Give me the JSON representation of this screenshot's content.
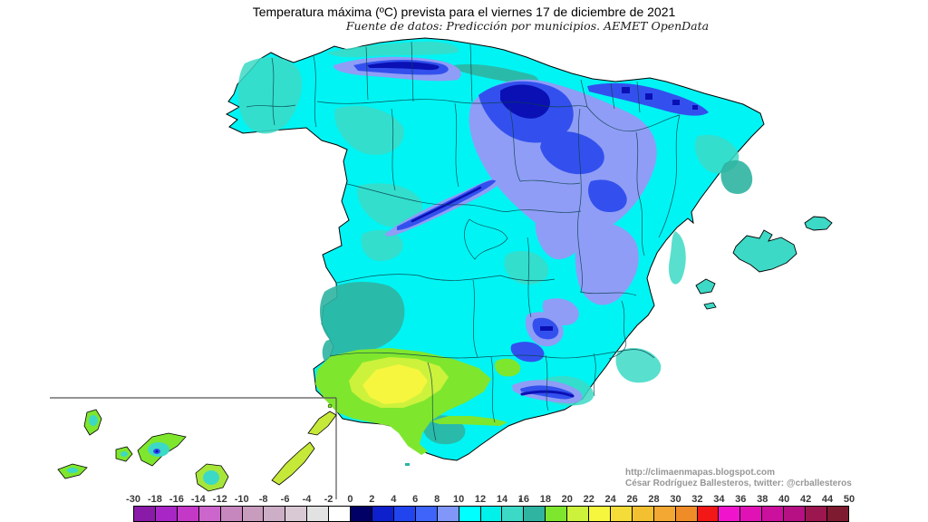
{
  "header": {
    "title": "Temperatura máxima (ºC) prevista para el viernes 17 de diciembre de 2021",
    "subtitle": "Fuente de datos: Predicción por municipios. AEMET OpenData"
  },
  "attribution": {
    "url": "http://climaenmapas.blogspot.com",
    "author": "César Rodríguez Ballesteros, twitter: @crballesteros"
  },
  "legend": {
    "tick_labels": [
      "-30",
      "-18",
      "-16",
      "-14",
      "-12",
      "-10",
      "-8",
      "-6",
      "-4",
      "-2",
      "0",
      "2",
      "4",
      "6",
      "8",
      "10",
      "12",
      "14",
      "16",
      "18",
      "20",
      "22",
      "24",
      "26",
      "28",
      "30",
      "32",
      "34",
      "36",
      "38",
      "40",
      "42",
      "44",
      "50"
    ],
    "cell_colors": [
      "#8A1BA8",
      "#A826C6",
      "#C438C8",
      "#CC66CC",
      "#C687BE",
      "#C79CBC",
      "#CCAEC6",
      "#D9C9D4",
      "#E3E2E3",
      "#FFFFFF",
      "#000066",
      "#0D20CC",
      "#2244EE",
      "#3E64FA",
      "#8096F8",
      "#00FFFF",
      "#00F0EA",
      "#3CD9C6",
      "#2FB4A2",
      "#7FE62E",
      "#CCF23C",
      "#F6F63E",
      "#F6DC38",
      "#F2C030",
      "#F2A832",
      "#F08C28",
      "#F21818",
      "#F014CC",
      "#E012B6",
      "#CC109E",
      "#B61084",
      "#9C1650",
      "#7E1B30"
    ],
    "marker_dot_between": [
      "14",
      "16"
    ]
  },
  "map": {
    "base_temp_color": "#00F4F4",
    "sea_color": "#FFFFFF"
  }
}
